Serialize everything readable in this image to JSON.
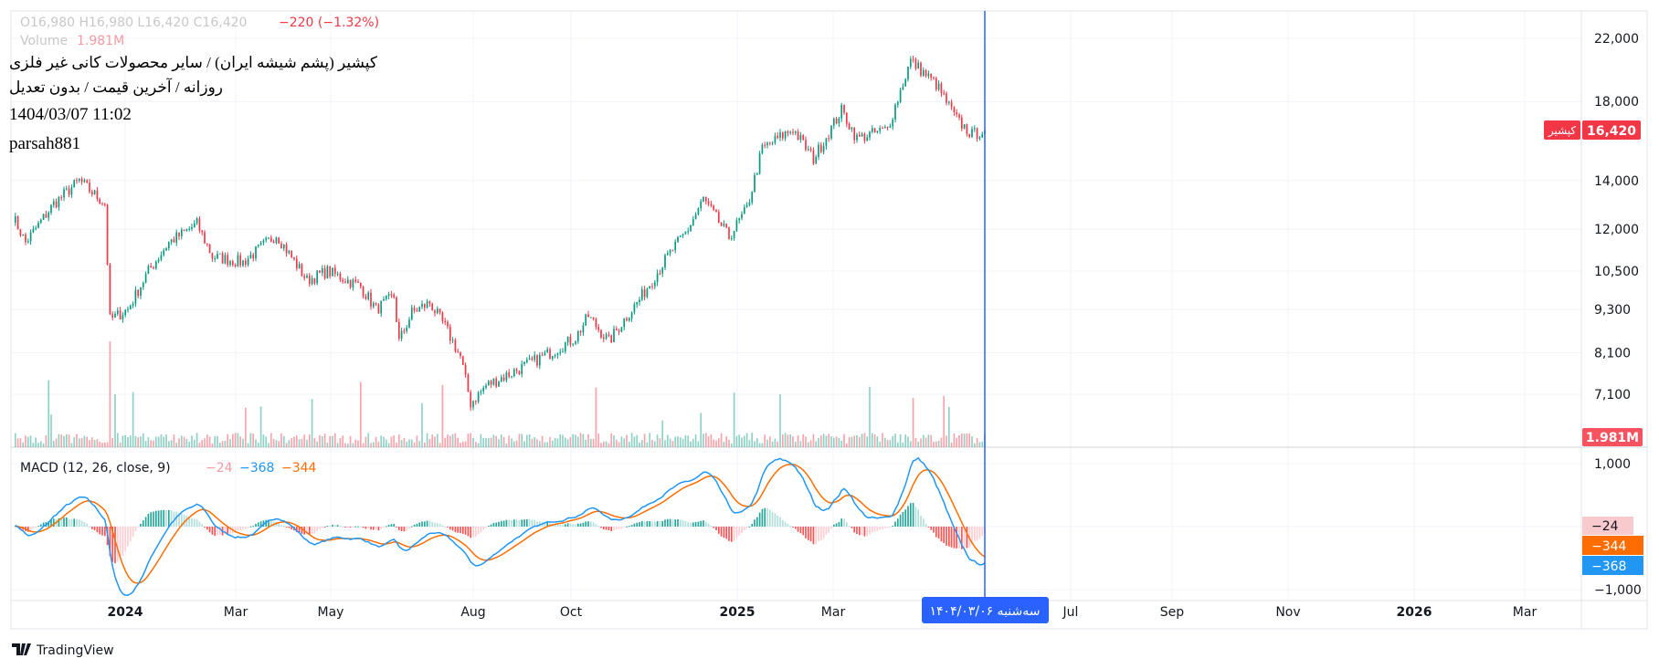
{
  "header": {
    "title": "کپشیر (پشم شیشه ایران) / سایر محصولات کانی غیر فلزی",
    "ohlc_ghost": "O16,980 H16,980 L16,420 C16,420",
    "change": "−220 (−1.32%)",
    "volume_label": "Volume",
    "volume_value": "1.981M",
    "subtitle": "روزانه / آخرین قیمت / بدون تعدیل",
    "datetime": "1404/03/07 11:02",
    "author": "parsah881"
  },
  "price_axis": {
    "labels": [
      "22,000",
      "18,000",
      "14,000",
      "12,000",
      "10,500",
      "9,300",
      "8,100",
      "7,100"
    ],
    "values": [
      22000,
      18000,
      14000,
      12000,
      10500,
      9300,
      8100,
      7100
    ],
    "last_price_tag": "16,420",
    "symbol_tag": "کپشیر",
    "volume_tag": "1.981M"
  },
  "macd": {
    "legend": "MACD (12, 26, close, 9)",
    "hist_value": "−24",
    "macd_value": "−368",
    "signal_value": "−344",
    "axis_labels": [
      "1,000",
      "−1,000"
    ],
    "axis_values": [
      1000,
      -1000
    ]
  },
  "time_axis": {
    "labels": [
      "2024",
      "Mar",
      "May",
      "Aug",
      "Oct",
      "2025",
      "Mar",
      "Jul",
      "Sep",
      "Nov",
      "2026",
      "Mar"
    ],
    "bold": [
      true,
      false,
      false,
      false,
      false,
      true,
      false,
      false,
      false,
      false,
      true,
      false
    ],
    "crosshair_tag": "سه‌شنبه ۱۴۰۴/۰۳/۰۶"
  },
  "colors": {
    "up": "#089981",
    "down": "#f23645",
    "macd_line": "#2196f3",
    "signal_line": "#ff6d00",
    "crosshair": "#2962ff",
    "grid": "#f0f3fa"
  },
  "footer": {
    "brand": "TradingView"
  },
  "chart_data": {
    "type": "candlestick",
    "title": "کپشیر",
    "bar_count": 380,
    "close_anchors": [
      [
        0,
        12500
      ],
      [
        5,
        11500
      ],
      [
        16,
        13000
      ],
      [
        26,
        14000
      ],
      [
        36,
        13000
      ],
      [
        38,
        9000
      ],
      [
        45,
        9300
      ],
      [
        53,
        10500
      ],
      [
        61,
        11500
      ],
      [
        72,
        12200
      ],
      [
        78,
        11000
      ],
      [
        90,
        10800
      ],
      [
        103,
        11800
      ],
      [
        115,
        10200
      ],
      [
        123,
        10500
      ],
      [
        136,
        10000
      ],
      [
        142,
        9300
      ],
      [
        149,
        9700
      ],
      [
        151,
        8400
      ],
      [
        156,
        9200
      ],
      [
        163,
        9500
      ],
      [
        169,
        8800
      ],
      [
        175,
        8000
      ],
      [
        179,
        6900
      ],
      [
        185,
        7300
      ],
      [
        198,
        7700
      ],
      [
        210,
        8100
      ],
      [
        220,
        8500
      ],
      [
        225,
        9100
      ],
      [
        233,
        8400
      ],
      [
        239,
        9000
      ],
      [
        245,
        9600
      ],
      [
        256,
        11000
      ],
      [
        264,
        12000
      ],
      [
        270,
        13200
      ],
      [
        280,
        11700
      ],
      [
        287,
        12800
      ],
      [
        293,
        15500
      ],
      [
        305,
        16500
      ],
      [
        313,
        15000
      ],
      [
        324,
        17500
      ],
      [
        330,
        16000
      ],
      [
        342,
        16500
      ],
      [
        351,
        20500
      ],
      [
        361,
        19000
      ],
      [
        369,
        17000
      ],
      [
        375,
        16200
      ],
      [
        380,
        16420
      ]
    ],
    "last": {
      "close": 16420,
      "volume": "1.981M",
      "macd": -368,
      "signal": -344,
      "hist": -24
    },
    "ylim_price": [
      6000,
      22000
    ],
    "ylim_macd": [
      -1300,
      1300
    ]
  }
}
